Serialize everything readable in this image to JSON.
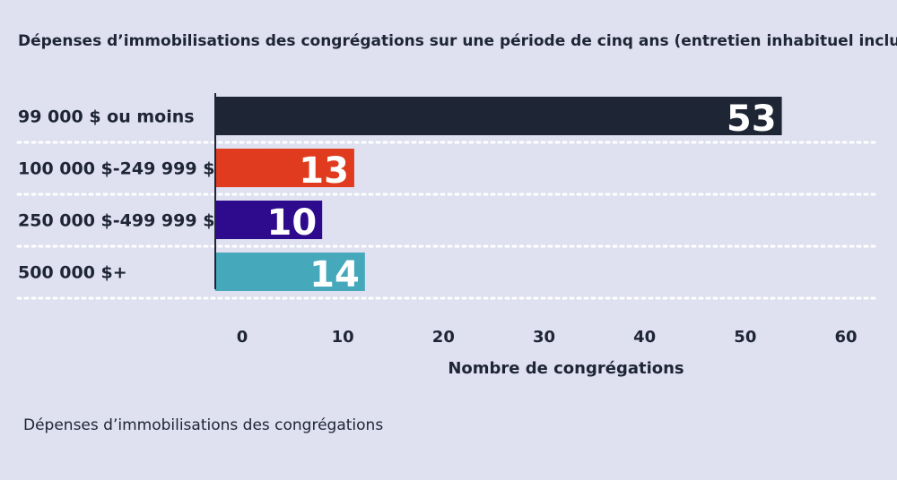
{
  "chart_data": {
    "type": "bar",
    "orientation": "horizontal",
    "title": "Dépenses d’immobilisations des congrégations sur une période de cinq ans (entretien inhabituel inclus)",
    "categories": [
      "99 000 $ ou moins",
      "100 000 $-249 999 $",
      "250 000 $-499 999 $",
      "500 000 $+"
    ],
    "values": [
      53,
      13,
      10,
      14
    ],
    "colors": [
      "#1e2535",
      "#e03a1f",
      "#2e0a8c",
      "#45a8bb"
    ],
    "xlabel": "Nombre de congrégations",
    "ylabel": "",
    "xlim": [
      0,
      60
    ],
    "ticks": [
      0,
      10,
      20,
      30,
      40,
      50,
      60
    ],
    "grid": "dotted row separators",
    "legend": "none"
  },
  "caption": "Dépenses d’immobilisations des congrégations"
}
